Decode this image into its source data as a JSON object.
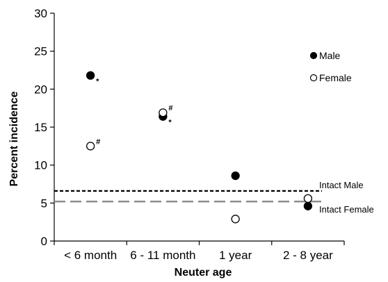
{
  "chart_data": {
    "type": "scatter",
    "xlabel": "Neuter age",
    "ylabel": "Percent incidence",
    "categories": [
      "< 6 month",
      "6 - 11 month",
      "1 year",
      "2 - 8 year"
    ],
    "ylim": [
      0,
      30
    ],
    "yticks": [
      0,
      5,
      10,
      15,
      20,
      25,
      30
    ],
    "grid": false,
    "series": [
      {
        "name": "Male",
        "marker": "filled-circle",
        "values": [
          21.8,
          16.4,
          8.6,
          4.6
        ],
        "markers": [
          "*",
          "*",
          "",
          ""
        ]
      },
      {
        "name": "Female",
        "marker": "open-circle",
        "values": [
          12.5,
          16.9,
          2.9,
          5.6
        ],
        "markers": [
          "#",
          "#",
          "",
          ""
        ]
      }
    ],
    "reference_lines": [
      {
        "label": "Intact Male",
        "value": 6.6,
        "style": "short-dash",
        "color": "#000000"
      },
      {
        "label": "Intact Female",
        "value": 5.2,
        "style": "long-dash",
        "color": "#8c8c8c"
      }
    ],
    "legend": {
      "placement": "top-right",
      "entries": [
        "Male",
        "Female"
      ]
    }
  }
}
